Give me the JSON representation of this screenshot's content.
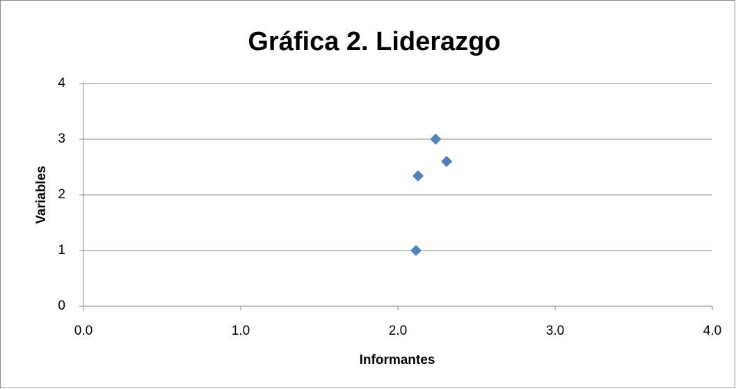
{
  "chart_data": {
    "type": "scatter",
    "title": "Gráfica 2. Liderazgo",
    "xlabel": "Informantes",
    "ylabel": "Variables",
    "series": [
      {
        "color": "#4f81bd",
        "x": [
          2.115,
          2.128,
          2.24,
          2.31
        ],
        "values": [
          1,
          2.34,
          3,
          2.6
        ]
      }
    ],
    "xlim": [
      0,
      4
    ],
    "xticks": [
      {
        "value": 0,
        "label": "0.0"
      },
      {
        "value": 1,
        "label": "1.0"
      },
      {
        "value": 2,
        "label": "2.0"
      },
      {
        "value": 3,
        "label": "3.0"
      },
      {
        "value": 4,
        "label": "4.0"
      }
    ],
    "ylim": [
      0,
      4
    ],
    "yticks": [
      0,
      1,
      2,
      3,
      4
    ],
    "grid": true
  }
}
